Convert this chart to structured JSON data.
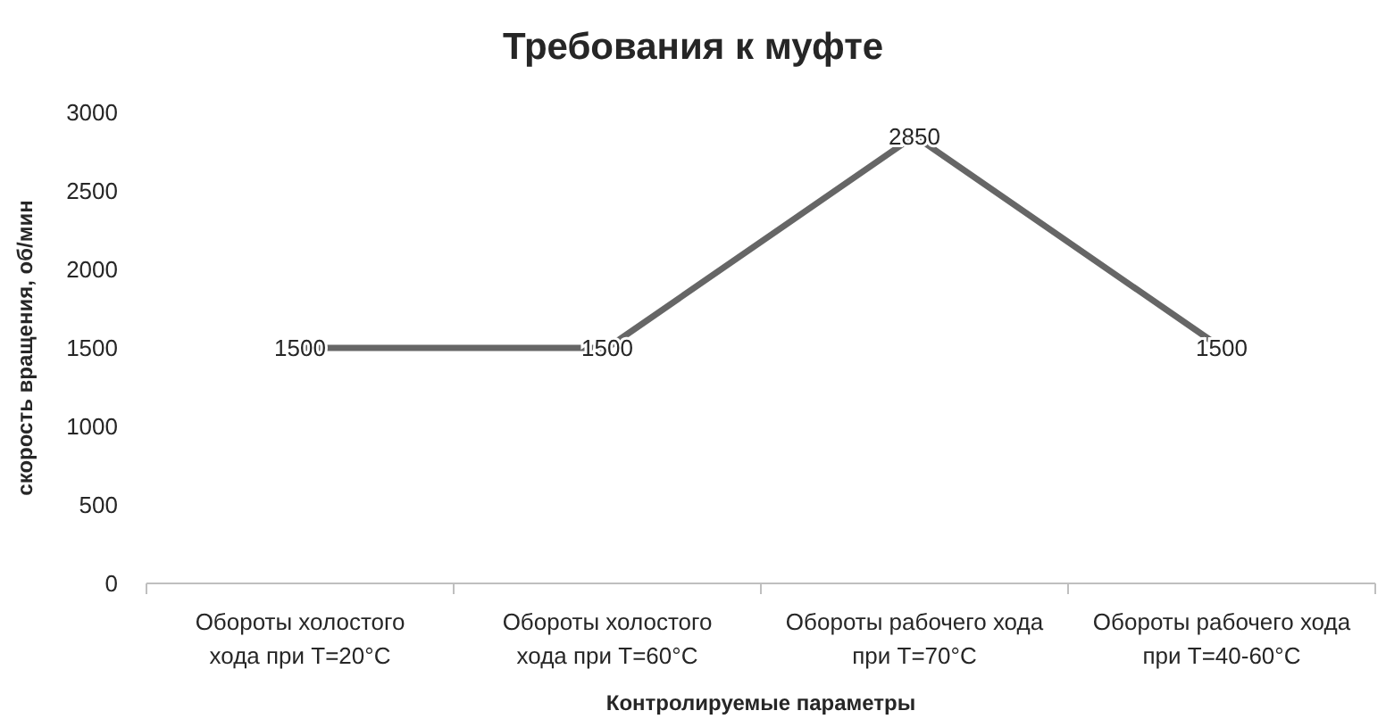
{
  "chart_data": {
    "type": "line",
    "title": "Требования к муфте",
    "xlabel": "Контролируемые параметры",
    "ylabel": "скорость вращения, об/мин",
    "categories": [
      "Обороты холостого хода при T=20°C",
      "Обороты холостого хода при T=60°C",
      "Обороты рабочего хода при T=70°C",
      "Обороты рабочего хода при T=40-60°C"
    ],
    "series": [
      {
        "color": "#666666",
        "values": [
          1500,
          1500,
          2850,
          1500
        ]
      }
    ],
    "ylim": [
      0,
      3000
    ],
    "yticks": [
      0,
      500,
      1000,
      1500,
      2000,
      2500,
      3000
    ],
    "marker": "none",
    "line_style": "solid",
    "data_labels": true
  }
}
